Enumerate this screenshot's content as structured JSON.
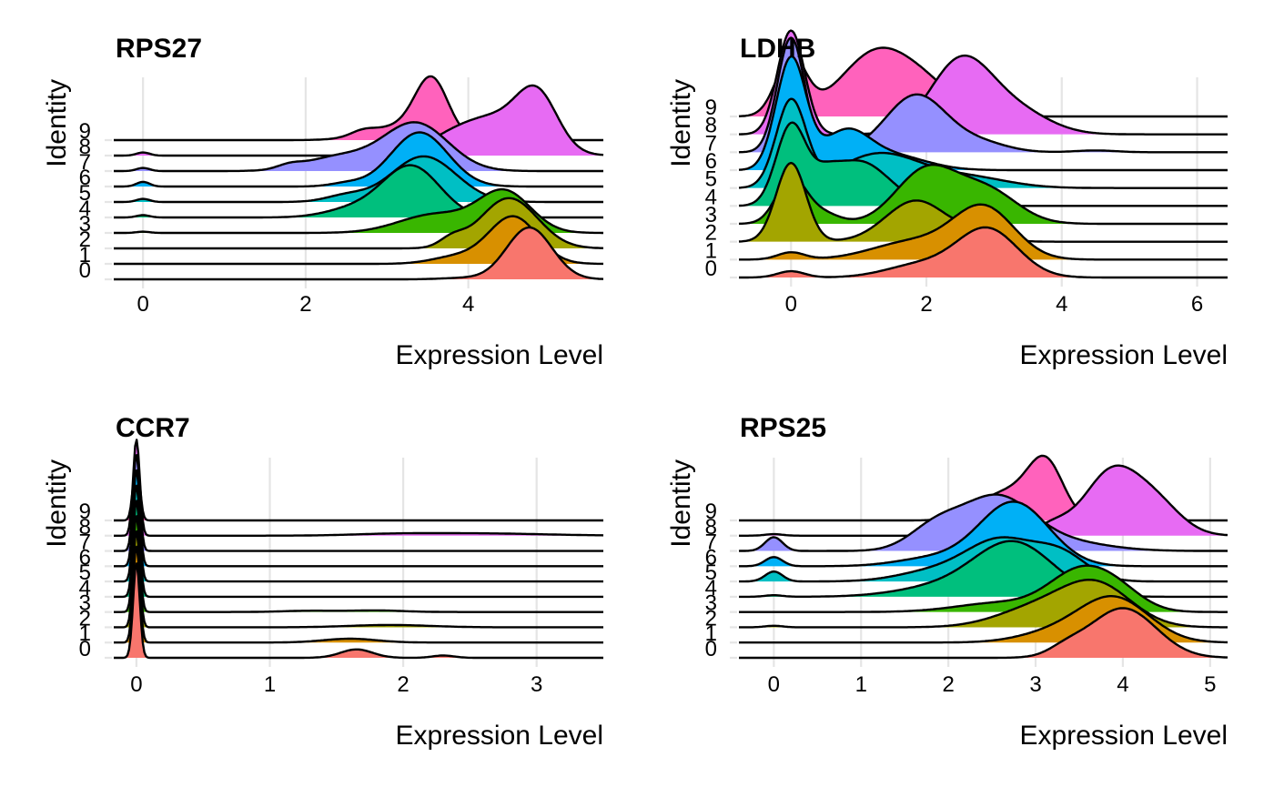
{
  "figure": {
    "layout": "2x2 grid of ridge (joy) plots"
  },
  "chart_data": [
    {
      "type": "ridgeline",
      "title": "RPS27",
      "xlabel": "Expression Level",
      "ylabel": "Identity",
      "xlim": [
        -0.36,
        5.66
      ],
      "xticks": [
        0,
        2,
        4
      ],
      "categories": [
        "0",
        "1",
        "2",
        "3",
        "4",
        "5",
        "6",
        "7",
        "8",
        "9"
      ],
      "grid": true,
      "series": [
        {
          "name": "0",
          "color": "#F8766D",
          "components": [
            [
              4.75,
              0.28,
              3.35
            ],
            [
              3.9,
              0.25,
              0.08
            ]
          ]
        },
        {
          "name": "1",
          "color": "#D89000",
          "components": [
            [
              4.55,
              0.3,
              3.05
            ],
            [
              3.85,
              0.3,
              0.45
            ]
          ]
        },
        {
          "name": "2",
          "color": "#A3A500",
          "components": [
            [
              4.5,
              0.35,
              3.25
            ],
            [
              3.8,
              0.15,
              0.55
            ]
          ]
        },
        {
          "name": "3",
          "color": "#39B600",
          "components": [
            [
              4.45,
              0.32,
              2.6
            ],
            [
              3.6,
              0.45,
              1.2
            ],
            [
              0.0,
              0.08,
              0.08
            ]
          ]
        },
        {
          "name": "4",
          "color": "#00BF7D",
          "components": [
            [
              3.3,
              0.35,
              3.3
            ],
            [
              2.6,
              0.35,
              0.55
            ],
            [
              0.0,
              0.08,
              0.15
            ]
          ]
        },
        {
          "name": "5",
          "color": "#00BFC4",
          "components": [
            [
              3.45,
              0.4,
              2.95
            ],
            [
              2.5,
              0.25,
              0.4
            ],
            [
              0.0,
              0.08,
              0.2
            ]
          ]
        },
        {
          "name": "6",
          "color": "#00B0F6",
          "components": [
            [
              3.4,
              0.35,
              3.5
            ],
            [
              2.5,
              0.2,
              0.2
            ],
            [
              0.0,
              0.08,
              0.3
            ]
          ]
        },
        {
          "name": "7",
          "color": "#9590FF",
          "components": [
            [
              3.35,
              0.4,
              3.1
            ],
            [
              2.4,
              0.4,
              0.9
            ],
            [
              1.8,
              0.15,
              0.25
            ],
            [
              0.0,
              0.08,
              0.2
            ]
          ]
        },
        {
          "name": "8",
          "color": "#E76BF3",
          "components": [
            [
              4.85,
              0.25,
              3.3
            ],
            [
              4.3,
              0.45,
              2.4
            ],
            [
              3.7,
              0.3,
              0.5
            ],
            [
              0.0,
              0.08,
              0.2
            ]
          ]
        },
        {
          "name": "9",
          "color": "#FF62BC",
          "components": [
            [
              3.55,
              0.2,
              3.5
            ],
            [
              3.2,
              0.4,
              0.9
            ],
            [
              2.7,
              0.15,
              0.3
            ]
          ]
        }
      ]
    },
    {
      "type": "ridgeline",
      "title": "LDHB",
      "xlabel": "Expression Level",
      "ylabel": "Identity",
      "xlim": [
        -0.77,
        6.45
      ],
      "xticks": [
        0,
        2,
        4,
        6
      ],
      "categories": [
        "0",
        "1",
        "2",
        "3",
        "4",
        "5",
        "6",
        "7",
        "8",
        "9"
      ],
      "grid": true,
      "series": [
        {
          "name": "0",
          "color": "#F8766D",
          "components": [
            [
              2.9,
              0.45,
              2.7
            ],
            [
              1.9,
              0.5,
              0.7
            ],
            [
              0.0,
              0.2,
              0.35
            ]
          ]
        },
        {
          "name": "1",
          "color": "#D89000",
          "components": [
            [
              2.85,
              0.45,
              2.85
            ],
            [
              1.8,
              0.6,
              1.0
            ],
            [
              0.0,
              0.2,
              0.4
            ]
          ]
        },
        {
          "name": "2",
          "color": "#A3A500",
          "components": [
            [
              0.0,
              0.22,
              4.4
            ],
            [
              1.85,
              0.45,
              2.3
            ],
            [
              2.8,
              0.3,
              0.5
            ]
          ]
        },
        {
          "name": "3",
          "color": "#39B600",
          "components": [
            [
              2.0,
              0.45,
              3.0
            ],
            [
              2.9,
              0.45,
              1.8
            ],
            [
              0.0,
              0.22,
              2.5
            ],
            [
              0.45,
              0.25,
              0.6
            ]
          ]
        },
        {
          "name": "4",
          "color": "#00BF7D",
          "components": [
            [
              0.0,
              0.22,
              4.4
            ],
            [
              1.0,
              0.45,
              2.5
            ],
            [
              0.5,
              0.2,
              0.8
            ]
          ]
        },
        {
          "name": "5",
          "color": "#00BFC4",
          "components": [
            [
              0.0,
              0.22,
              4.8
            ],
            [
              1.3,
              0.6,
              1.9
            ],
            [
              2.6,
              0.6,
              0.6
            ]
          ]
        },
        {
          "name": "6",
          "color": "#00B0F6",
          "components": [
            [
              0.0,
              0.22,
              6.2
            ],
            [
              0.8,
              0.35,
              2.0
            ],
            [
              1.5,
              0.5,
              0.8
            ]
          ]
        },
        {
          "name": "7",
          "color": "#9590FF",
          "components": [
            [
              0.0,
              0.2,
              6.4
            ],
            [
              1.85,
              0.45,
              3.2
            ],
            [
              2.8,
              0.4,
              0.5
            ],
            [
              4.5,
              0.3,
              0.1
            ]
          ]
        },
        {
          "name": "8",
          "color": "#E76BF3",
          "components": [
            [
              0.0,
              0.2,
              5.8
            ],
            [
              2.5,
              0.45,
              4.0
            ],
            [
              3.3,
              0.5,
              1.3
            ]
          ]
        },
        {
          "name": "9",
          "color": "#FF62BC",
          "components": [
            [
              0.0,
              0.22,
              3.2
            ],
            [
              1.3,
              0.55,
              3.7
            ],
            [
              2.1,
              0.4,
              0.9
            ]
          ]
        }
      ]
    },
    {
      "type": "ridgeline",
      "title": "CCR7",
      "xlabel": "Expression Level",
      "ylabel": "Identity",
      "xlim": [
        -0.17,
        3.5
      ],
      "xticks": [
        0,
        1,
        2,
        3
      ],
      "categories": [
        "0",
        "1",
        "2",
        "3",
        "4",
        "5",
        "6",
        "7",
        "8",
        "9"
      ],
      "grid": true,
      "series": [
        {
          "name": "0",
          "color": "#F8766D",
          "components": [
            [
              0.0,
              0.025,
              6.2
            ],
            [
              1.65,
              0.12,
              0.55
            ],
            [
              2.3,
              0.08,
              0.15
            ]
          ]
        },
        {
          "name": "1",
          "color": "#D89000",
          "components": [
            [
              0.0,
              0.025,
              6.3
            ],
            [
              1.6,
              0.2,
              0.25
            ]
          ]
        },
        {
          "name": "2",
          "color": "#A3A500",
          "components": [
            [
              0.0,
              0.025,
              6.3
            ],
            [
              1.9,
              0.3,
              0.15
            ]
          ]
        },
        {
          "name": "3",
          "color": "#39B600",
          "components": [
            [
              0.0,
              0.025,
              6.3
            ],
            [
              1.3,
              0.2,
              0.08
            ],
            [
              1.8,
              0.2,
              0.1
            ]
          ]
        },
        {
          "name": "4",
          "color": "#00BF7D",
          "components": [
            [
              0.0,
              0.025,
              6.3
            ]
          ]
        },
        {
          "name": "5",
          "color": "#00BFC4",
          "components": [
            [
              0.0,
              0.025,
              6.3
            ]
          ]
        },
        {
          "name": "6",
          "color": "#00B0F6",
          "components": [
            [
              0.0,
              0.025,
              6.3
            ]
          ]
        },
        {
          "name": "7",
          "color": "#9590FF",
          "components": [
            [
              0.0,
              0.025,
              6.3
            ]
          ]
        },
        {
          "name": "8",
          "color": "#E76BF3",
          "components": [
            [
              0.0,
              0.025,
              6.3
            ],
            [
              2.55,
              0.5,
              0.15
            ],
            [
              1.9,
              0.3,
              0.08
            ]
          ]
        },
        {
          "name": "9",
          "color": "#FF62BC",
          "components": [
            [
              0.0,
              0.025,
              4.0
            ]
          ]
        }
      ]
    },
    {
      "type": "ridgeline",
      "title": "RPS25",
      "xlabel": "Expression Level",
      "ylabel": "Identity",
      "xlim": [
        -0.4,
        5.2
      ],
      "xticks": [
        0,
        1,
        2,
        3,
        4,
        5
      ],
      "categories": [
        "0",
        "1",
        "2",
        "3",
        "4",
        "5",
        "6",
        "7",
        "8",
        "9"
      ],
      "grid": true,
      "series": [
        {
          "name": "0",
          "color": "#F8766D",
          "components": [
            [
              4.0,
              0.38,
              3.25
            ],
            [
              3.35,
              0.2,
              0.5
            ]
          ]
        },
        {
          "name": "1",
          "color": "#D89000",
          "components": [
            [
              3.9,
              0.4,
              2.9
            ],
            [
              3.2,
              0.4,
              0.6
            ]
          ]
        },
        {
          "name": "2",
          "color": "#A3A500",
          "components": [
            [
              3.7,
              0.4,
              2.7
            ],
            [
              3.0,
              0.45,
              1.2
            ],
            [
              0.0,
              0.1,
              0.1
            ]
          ]
        },
        {
          "name": "3",
          "color": "#39B600",
          "components": [
            [
              3.5,
              0.35,
              2.5
            ],
            [
              3.95,
              0.3,
              1.1
            ],
            [
              2.6,
              0.5,
              0.6
            ]
          ]
        },
        {
          "name": "4",
          "color": "#00BF7D",
          "components": [
            [
              2.75,
              0.45,
              3.5
            ],
            [
              1.9,
              0.5,
              0.6
            ],
            [
              0.0,
              0.1,
              0.1
            ]
          ]
        },
        {
          "name": "5",
          "color": "#00BFC4",
          "components": [
            [
              2.6,
              0.4,
              2.7
            ],
            [
              3.3,
              0.3,
              1.6
            ],
            [
              1.8,
              0.4,
              0.6
            ],
            [
              0.0,
              0.1,
              0.65
            ]
          ]
        },
        {
          "name": "6",
          "color": "#00B0F6",
          "components": [
            [
              2.75,
              0.4,
              4.2
            ],
            [
              1.8,
              0.4,
              0.5
            ],
            [
              0.0,
              0.1,
              0.6
            ]
          ]
        },
        {
          "name": "7",
          "color": "#9590FF",
          "components": [
            [
              2.55,
              0.4,
              3.4
            ],
            [
              1.85,
              0.3,
              1.5
            ],
            [
              3.3,
              0.5,
              0.6
            ],
            [
              0.0,
              0.1,
              0.9
            ]
          ]
        },
        {
          "name": "8",
          "color": "#E76BF3",
          "components": [
            [
              3.85,
              0.3,
              3.9
            ],
            [
              4.35,
              0.3,
              2.2
            ],
            [
              3.2,
              0.2,
              0.7
            ],
            [
              0.0,
              0.1,
              0.1
            ]
          ]
        },
        {
          "name": "9",
          "color": "#FF62BC",
          "components": [
            [
              3.12,
              0.2,
              3.5
            ],
            [
              2.7,
              0.3,
              1.8
            ],
            [
              2.3,
              0.2,
              0.3
            ]
          ]
        }
      ]
    }
  ]
}
